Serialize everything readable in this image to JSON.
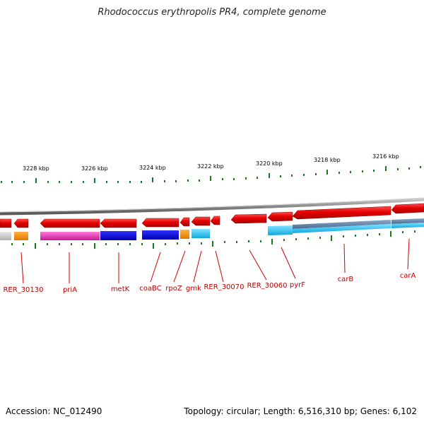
{
  "title": "Rhodococcus erythropolis PR4, complete genome",
  "footer": {
    "accession": "Accession: NC_012490",
    "stats": "Topology: circular; Length: 6,516,310 bp; Genes: 6,102"
  },
  "scale_labels": [
    "3228 kbp",
    "3226 kbp",
    "3224 kbp",
    "3222 kbp",
    "3220 kbp",
    "3218 kbp",
    "3216 kbp"
  ],
  "gene_labels": [
    "RER_30130",
    "priA",
    "metK",
    "coaBC",
    "rpoZ",
    "gmk",
    "RER_30070",
    "RER_30060",
    "pyrF",
    "carB",
    "carA"
  ],
  "colors": {
    "forward_gene": "#e00000",
    "backbone": "#888888",
    "tick": "#1a7a1a",
    "label": "#c00000"
  }
}
